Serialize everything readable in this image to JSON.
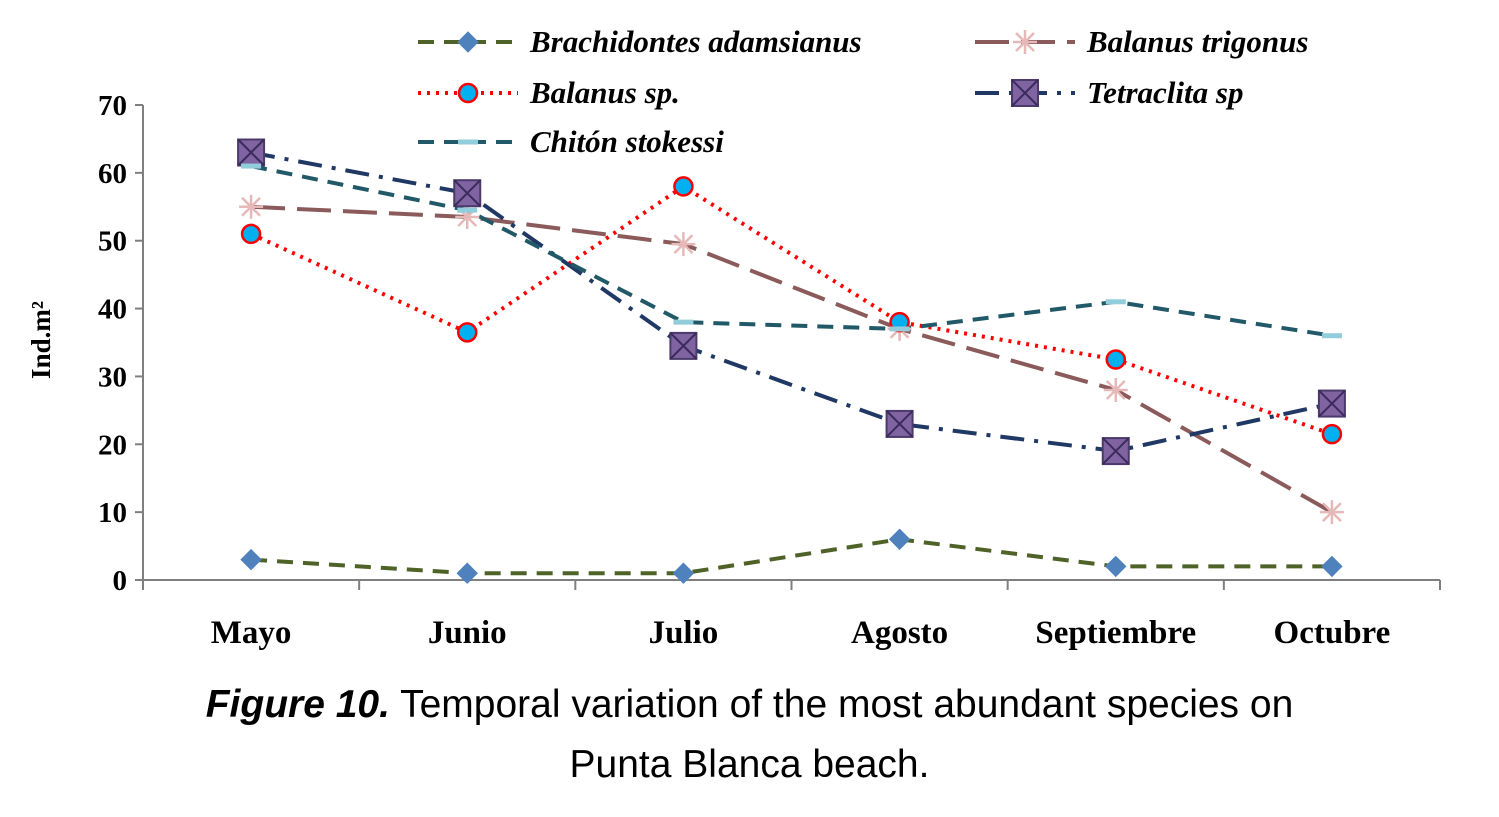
{
  "chart_data": {
    "type": "line",
    "title": "",
    "xlabel": "",
    "ylabel": "Ind.m²",
    "ylim": [
      0,
      70
    ],
    "yticks": [
      0,
      10,
      20,
      30,
      40,
      50,
      60,
      70
    ],
    "categories": [
      "Mayo",
      "Junio",
      "Julio",
      "Agosto",
      "Septiembre",
      "Octubre"
    ],
    "legend_position": "top",
    "series": [
      {
        "name": "Brachidontes adamsianus",
        "color": "#4f6228",
        "marker": "diamond",
        "marker_color": "#4f81bd",
        "dash": "dash",
        "values": [
          3,
          1,
          1,
          6,
          2,
          2
        ]
      },
      {
        "name": "Balanus trigonus",
        "color": "#8b5a5a",
        "marker": "asterisk",
        "marker_color": "#e6b9b8",
        "dash": "longdash",
        "values": [
          55,
          53.5,
          49.5,
          37,
          28,
          10
        ]
      },
      {
        "name": "Balanus sp.",
        "color": "#ff0000",
        "marker": "circle",
        "marker_color": "#00b0f0",
        "dash": "dot",
        "values": [
          51,
          36.5,
          58,
          38,
          32.5,
          21.5
        ]
      },
      {
        "name": "Tetraclita sp",
        "color": "#1f3864",
        "marker": "square-x",
        "marker_color": "#8064a2",
        "dash": "dashdot",
        "values": [
          63,
          57,
          34.5,
          23,
          19,
          26
        ]
      },
      {
        "name": "Chitón stokessi",
        "color": "#215968",
        "marker": "dash",
        "marker_color": "#92cddc",
        "dash": "dash",
        "values": [
          61,
          54.5,
          38,
          37,
          41,
          36
        ]
      }
    ]
  },
  "caption": {
    "figure_label": "Figure 10.",
    "text": " Temporal variation of the most abundant species on",
    "line2": "Punta Blanca beach."
  }
}
